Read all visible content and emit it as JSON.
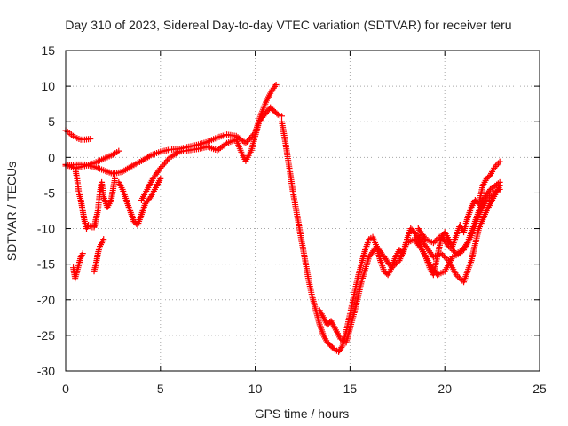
{
  "chart_data": {
    "type": "scatter",
    "title": "Day 310 of 2023, Sidereal Day-to-day VTEC variation (SDTVAR) for receiver teru",
    "xlabel": "GPS time / hours",
    "ylabel": "SDTVAR / TECUs",
    "xlim": [
      0,
      25
    ],
    "ylim": [
      -30,
      15
    ],
    "xticks": [
      0,
      5,
      10,
      15,
      20,
      25
    ],
    "yticks": [
      -30,
      -25,
      -20,
      -15,
      -10,
      -5,
      0,
      5,
      10,
      15
    ],
    "grid": true,
    "marker": "plus",
    "color": "#ff0000",
    "series": [
      {
        "x": [
          0,
          0.2,
          0.4,
          0.6,
          0.8,
          1.0,
          1.3
        ],
        "y": [
          3.8,
          3.4,
          3.0,
          2.7,
          2.5,
          2.5,
          2.6
        ]
      },
      {
        "x": [
          0,
          0.5,
          1.0,
          1.5,
          2.0,
          2.5,
          2.8
        ],
        "y": [
          -1.0,
          -1.5,
          -1.2,
          -0.8,
          -0.2,
          0.4,
          0.9
        ]
      },
      {
        "x": [
          0,
          0.5,
          1.0,
          1.5,
          2.0,
          2.5,
          3.0,
          3.5,
          4.0,
          4.5,
          5.0,
          5.5,
          6.0,
          6.5,
          7.0,
          7.5,
          8.0,
          8.5,
          9.0,
          9.5,
          10.0,
          10.3,
          10.6,
          10.9,
          11.1
        ],
        "y": [
          -1.2,
          -1.0,
          -1.0,
          -1.3,
          -1.8,
          -2.3,
          -2.0,
          -1.2,
          -0.5,
          0.3,
          0.8,
          1.1,
          1.2,
          1.5,
          1.8,
          2.2,
          2.8,
          3.2,
          3.0,
          2.0,
          3.5,
          6.0,
          8.0,
          9.5,
          10.2
        ]
      },
      {
        "x": [
          0.5,
          0.6,
          0.7,
          0.8,
          0.9,
          1.0,
          1.1,
          1.2,
          1.4,
          1.6
        ],
        "y": [
          -1.5,
          -3.0,
          -5.0,
          -6.0,
          -7.5,
          -9.0,
          -10.0,
          -9.5,
          -9.8,
          -9.5
        ]
      },
      {
        "x": [
          1.5,
          1.7,
          1.8,
          1.9,
          2.0,
          2.2,
          2.4,
          2.6
        ],
        "y": [
          -9.8,
          -7.5,
          -5.0,
          -3.5,
          -5.5,
          -7.0,
          -6.0,
          -3.0
        ]
      },
      {
        "x": [
          0.4,
          0.5,
          0.6,
          0.7,
          0.8,
          0.9
        ],
        "y": [
          -15.5,
          -17.0,
          -16.0,
          -15.0,
          -14.0,
          -13.5
        ]
      },
      {
        "x": [
          1.5,
          1.6,
          1.7,
          1.8,
          1.9,
          2.0
        ],
        "y": [
          -16.0,
          -15.0,
          -13.5,
          -12.5,
          -12.0,
          -11.5
        ]
      },
      {
        "x": [
          2.8,
          3.0,
          3.2,
          3.4,
          3.6,
          3.8,
          4.0,
          4.2,
          4.5,
          4.8,
          5.0
        ],
        "y": [
          -3.5,
          -4.5,
          -6.0,
          -7.5,
          -9.0,
          -9.5,
          -8.0,
          -6.5,
          -5.5,
          -4.0,
          -3.0
        ]
      },
      {
        "x": [
          4.0,
          4.3,
          4.6,
          5.0,
          5.5,
          6.0,
          6.5,
          7.0,
          7.5,
          8.0,
          8.5,
          9.0,
          9.3,
          9.5,
          9.8,
          10.0,
          10.2,
          10.5,
          10.8,
          11.0,
          11.2,
          11.4
        ],
        "y": [
          -6.0,
          -4.5,
          -3.0,
          -1.5,
          0.0,
          0.8,
          1.0,
          1.2,
          1.5,
          1.0,
          2.0,
          2.5,
          0.5,
          -0.5,
          1.0,
          3.0,
          5.0,
          6.0,
          7.0,
          6.5,
          6.0,
          5.8
        ]
      },
      {
        "x": [
          11.4,
          11.6,
          11.8,
          12.0,
          12.2,
          12.4,
          12.6,
          12.8,
          13.0,
          13.2,
          13.4,
          13.6,
          13.8,
          14.0,
          14.2,
          14.4,
          14.6,
          14.8,
          15.0,
          15.2,
          15.4,
          15.6,
          15.8,
          16.0,
          16.2,
          16.4,
          16.6,
          16.8,
          17.0,
          17.2,
          17.4,
          17.6,
          17.8,
          18.0,
          18.2,
          18.4,
          18.6,
          18.8,
          19.0,
          19.2,
          19.4,
          19.6,
          19.8,
          20.0,
          20.2,
          20.4,
          20.6,
          20.8,
          21.0,
          21.2,
          21.4,
          21.6,
          21.8,
          22.0,
          22.2,
          22.4,
          22.6,
          22.9
        ],
        "y": [
          5.0,
          2.0,
          -1.5,
          -5.0,
          -8.0,
          -11.0,
          -14.0,
          -17.0,
          -19.5,
          -21.5,
          -23.5,
          -25.0,
          -26.0,
          -26.5,
          -27.0,
          -27.3,
          -26.5,
          -24.5,
          -22.0,
          -19.5,
          -17.0,
          -15.0,
          -13.0,
          -11.5,
          -11.2,
          -12.5,
          -14.5,
          -16.0,
          -16.5,
          -15.5,
          -14.0,
          -13.0,
          -13.5,
          -11.5,
          -10.0,
          -10.5,
          -11.5,
          -13.0,
          -14.0,
          -15.5,
          -16.5,
          -14.0,
          -11.5,
          -10.5,
          -11.5,
          -12.5,
          -11.0,
          -9.5,
          -10.5,
          -8.5,
          -7.0,
          -6.0,
          -6.5,
          -4.0,
          -3.0,
          -2.5,
          -1.5,
          -0.6
        ]
      },
      {
        "x": [
          13.4,
          13.6,
          13.8,
          14.0,
          14.2,
          14.5,
          14.8,
          15.0,
          15.3,
          15.6,
          16.0,
          16.4,
          16.8,
          17.2,
          17.6,
          18.0,
          18.4,
          18.8,
          19.2,
          19.6,
          20.0,
          20.4,
          20.8,
          21.2,
          21.6,
          22.0,
          22.4,
          22.9
        ],
        "y": [
          -21.5,
          -22.5,
          -23.5,
          -23.0,
          -24.0,
          -25.5,
          -26.0,
          -24.0,
          -21.0,
          -17.5,
          -14.0,
          -12.5,
          -14.0,
          -15.5,
          -14.5,
          -12.0,
          -11.5,
          -13.0,
          -15.0,
          -16.5,
          -16.0,
          -14.0,
          -13.5,
          -12.0,
          -9.0,
          -6.0,
          -4.5,
          -3.5
        ]
      },
      {
        "x": [
          18.6,
          19.0,
          19.4,
          19.8,
          20.2,
          20.6,
          21.0,
          21.4,
          21.8,
          22.2,
          22.6,
          22.9
        ],
        "y": [
          -10.0,
          -11.5,
          -12.0,
          -11.0,
          -12.5,
          -13.5,
          -13.0,
          -11.0,
          -8.0,
          -6.0,
          -5.0,
          -4.5
        ]
      },
      {
        "x": [
          18.6,
          19.0,
          19.4,
          19.8,
          20.2,
          20.6,
          21.0,
          21.4,
          21.8,
          22.2,
          22.6,
          22.9
        ],
        "y": [
          -11.0,
          -12.5,
          -14.0,
          -13.5,
          -14.5,
          -16.5,
          -17.5,
          -14.5,
          -10.0,
          -7.5,
          -5.5,
          -4.0
        ]
      }
    ]
  }
}
